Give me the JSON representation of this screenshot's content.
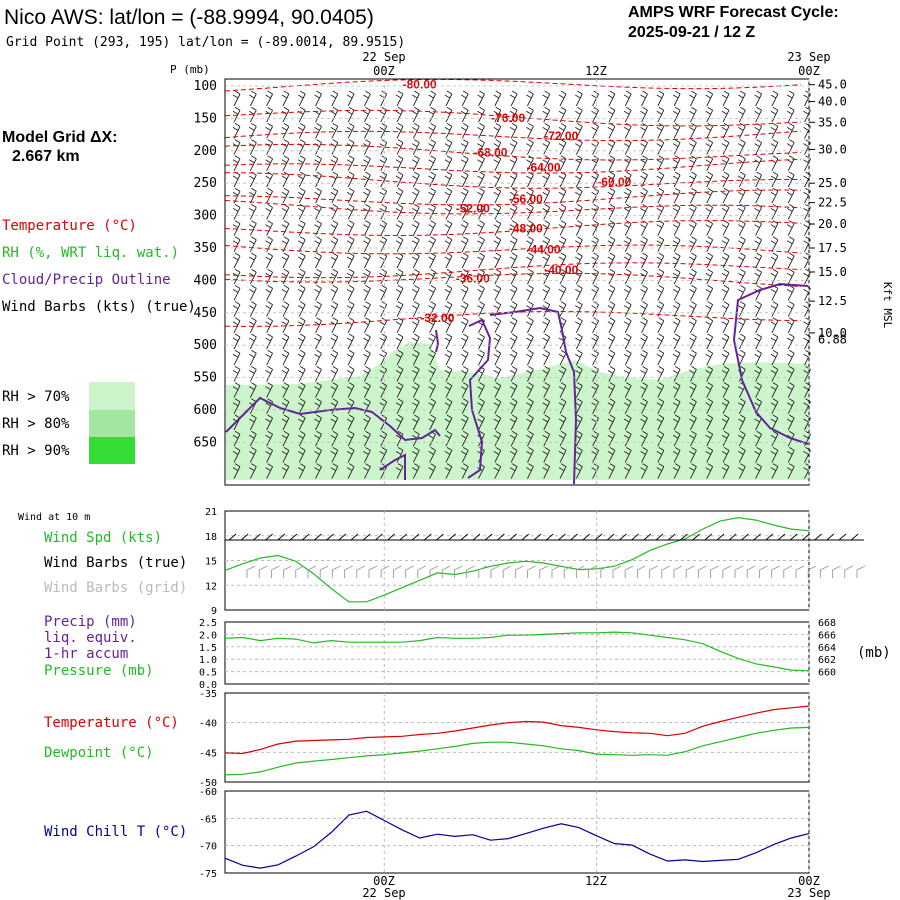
{
  "header": {
    "title": "Nico AWS:  lat/lon = (-88.9994, 90.0405)",
    "grid_point": "Grid Point (293, 195) lat/lon = (-89.0014, 89.9515)",
    "cycle_label": "AMPS WRF Forecast Cycle:",
    "cycle_value": "2025-09-21 / 12  Z"
  },
  "colors": {
    "temperature": "#dd0000",
    "rh": "#22bb22",
    "cloud": "#662299",
    "pressure": "#22bb22",
    "dewpoint": "#22bb22",
    "windchill": "#000099",
    "rh70": "#ccf5cc",
    "rh80": "#a2e6a2",
    "rh90": "#33dd33"
  },
  "time_axis": {
    "top_date": "22 Sep",
    "top_date_end": "23 Sep",
    "ticks": [
      "00Z",
      "12Z",
      "00Z"
    ],
    "bottom_date": "22 Sep",
    "bottom_date_end": "23 Sep"
  },
  "sounding_legend": {
    "model_grid_1": "Model Grid ΔX:",
    "model_grid_2": "2.667 km",
    "temperature": "Temperature (°C)",
    "rh": "RH (%, WRT liq. wat.)",
    "cloud": "Cloud/Precip Outline",
    "wind": "Wind Barbs (kts) (true)",
    "rh70": "RH > 70%",
    "rh80": "RH > 80%",
    "rh90": "RH > 90%",
    "right_axis_label": "Kft MSL"
  },
  "panel_labels": {
    "wind10m_title": "Wind at 10 m",
    "wind_spd": "Wind Spd (kts)",
    "wind_barbs_true": "Wind Barbs (true)",
    "wind_barbs_grid": "Wind Barbs (grid)",
    "precip_1": "Precip (mm)",
    "precip_2": "liq. equiv.",
    "precip_3": "1-hr accum",
    "pressure": "Pressure (mb)",
    "pressure_unit": "(mb)",
    "temperature": "Temperature (°C)",
    "dewpoint": "Dewpoint (°C)",
    "windchill": "Wind Chill T (°C)"
  },
  "chart_data": [
    {
      "type": "heatmap",
      "name": "sounding",
      "ylabel": "P (mb)",
      "yticks": [
        100,
        150,
        200,
        250,
        300,
        350,
        400,
        450,
        500,
        550,
        600,
        650
      ],
      "kft_ticks": [
        "45.0",
        "40.0",
        "35.0",
        "30.0",
        "25.0",
        "22.5",
        "20.0",
        "17.5",
        "15.0",
        "12.5",
        "10.0"
      ],
      "kft_pressures": [
        98,
        124,
        156,
        198,
        250,
        280,
        313,
        350,
        387,
        432,
        481
      ],
      "kft_extra": "6.88",
      "x_hours": [
        0,
        6,
        12,
        18,
        24,
        30,
        36
      ],
      "temperature_labels": [
        {
          "text": "-80.00",
          "hour": 2,
          "p": 98
        },
        {
          "text": "-76.00",
          "hour": 7,
          "p": 149
        },
        {
          "text": "-72.00",
          "hour": 10,
          "p": 177
        },
        {
          "text": "-68.00",
          "hour": 6,
          "p": 203
        },
        {
          "text": "-64.00",
          "hour": 9,
          "p": 226
        },
        {
          "text": "-60.00",
          "hour": 13,
          "p": 248
        },
        {
          "text": "-56.00",
          "hour": 8,
          "p": 274
        },
        {
          "text": "-52.00",
          "hour": 5,
          "p": 289
        },
        {
          "text": "-48.00",
          "hour": 8,
          "p": 320
        },
        {
          "text": "-44.00",
          "hour": 9,
          "p": 352
        },
        {
          "text": "-40.00",
          "hour": 10,
          "p": 384
        },
        {
          "text": "-36.00",
          "hour": 5,
          "p": 397
        },
        {
          "text": "-32.00",
          "hour": 3,
          "p": 458
        }
      ]
    },
    {
      "type": "line",
      "name": "wind10m",
      "ylim": [
        9,
        21
      ],
      "yticks": [
        "21",
        "18",
        "15",
        "12",
        "9"
      ],
      "x_hours": [
        -9,
        -8,
        -7,
        -6,
        -5,
        -4,
        -3,
        -2,
        -1,
        0,
        1,
        2,
        3,
        4,
        5,
        6,
        7,
        8,
        9,
        10,
        11,
        12,
        13,
        14,
        15,
        16,
        17,
        18,
        19,
        20,
        21,
        22,
        23,
        24
      ],
      "series": [
        {
          "name": "Wind Spd (kts)",
          "values": [
            13.8,
            14.6,
            15.3,
            15.6,
            14.9,
            13.4,
            11.6,
            10.0,
            10.0,
            10.8,
            11.7,
            12.6,
            13.5,
            13.3,
            13.7,
            14.3,
            14.7,
            14.9,
            14.7,
            14.3,
            13.9,
            14.0,
            14.3,
            15.1,
            16.2,
            17.0,
            17.6,
            18.8,
            19.8,
            20.2,
            19.9,
            19.3,
            18.8,
            18.6
          ]
        }
      ]
    },
    {
      "type": "line",
      "name": "pressure",
      "left_ticks": [
        "2.5",
        "2.0",
        "1.5",
        "1.0",
        "0.5",
        "0.0"
      ],
      "ylim": [
        660,
        668
      ],
      "yticks": [
        "668",
        "666",
        "664",
        "662",
        "660"
      ],
      "x_hours": [
        -9,
        -8,
        -7,
        -6,
        -5,
        -4,
        -3,
        -2,
        -1,
        0,
        1,
        2,
        3,
        4,
        5,
        6,
        7,
        8,
        9,
        10,
        11,
        12,
        13,
        14,
        15,
        16,
        17,
        18,
        19,
        20,
        21,
        22,
        23,
        24
      ],
      "series": [
        {
          "name": "Pressure (mb)",
          "values": [
            665.9,
            666.0,
            665.6,
            665.9,
            665.8,
            665.3,
            665.6,
            665.4,
            665.4,
            665.4,
            665.4,
            665.6,
            666.0,
            665.9,
            665.9,
            666.0,
            666.3,
            666.3,
            666.4,
            666.5,
            666.6,
            666.6,
            666.7,
            666.6,
            666.3,
            666.0,
            665.7,
            665.2,
            664.2,
            663.3,
            662.6,
            662.2,
            661.8,
            661.7
          ]
        }
      ]
    },
    {
      "type": "line",
      "name": "temperature",
      "ylim": [
        -50,
        -35
      ],
      "yticks": [
        "-35",
        "-40",
        "-45",
        "-50"
      ],
      "x_hours": [
        -9,
        -8,
        -7,
        -6,
        -5,
        -4,
        -3,
        -2,
        -1,
        0,
        1,
        2,
        3,
        4,
        5,
        6,
        7,
        8,
        9,
        10,
        11,
        12,
        13,
        14,
        15,
        16,
        17,
        18,
        19,
        20,
        21,
        22,
        23,
        24
      ],
      "series": [
        {
          "name": "Temperature (°C)",
          "values": [
            -45.1,
            -45.2,
            -44.5,
            -43.6,
            -43.1,
            -43.0,
            -42.9,
            -42.8,
            -42.5,
            -42.4,
            -42.3,
            -42.0,
            -41.8,
            -41.4,
            -40.9,
            -40.4,
            -40.0,
            -39.8,
            -39.9,
            -40.5,
            -40.8,
            -41.2,
            -41.5,
            -41.7,
            -41.8,
            -42.2,
            -41.8,
            -40.6,
            -39.8,
            -39.1,
            -38.4,
            -37.8,
            -37.5,
            -37.2
          ]
        },
        {
          "name": "Dewpoint (°C)",
          "values": [
            -48.8,
            -48.7,
            -48.3,
            -47.5,
            -46.8,
            -46.5,
            -46.2,
            -45.9,
            -45.6,
            -45.4,
            -45.1,
            -44.8,
            -44.4,
            -44.0,
            -43.5,
            -43.3,
            -43.3,
            -43.6,
            -43.9,
            -44.4,
            -44.7,
            -45.3,
            -45.4,
            -45.5,
            -45.4,
            -45.5,
            -44.9,
            -43.9,
            -43.2,
            -42.5,
            -41.8,
            -41.3,
            -40.9,
            -40.8
          ]
        }
      ]
    },
    {
      "type": "line",
      "name": "windchill",
      "ylim": [
        -75,
        -60
      ],
      "yticks": [
        "-60",
        "-65",
        "-70",
        "-75"
      ],
      "x_hours": [
        -9,
        -8,
        -7,
        -6,
        -5,
        -4,
        -3,
        -2,
        -1,
        0,
        1,
        2,
        3,
        4,
        5,
        6,
        7,
        8,
        9,
        10,
        11,
        12,
        13,
        14,
        15,
        16,
        17,
        18,
        19,
        20,
        21,
        22,
        23,
        24
      ],
      "series": [
        {
          "name": "Wind Chill T (°C)",
          "values": [
            -72.3,
            -73.6,
            -74.1,
            -73.5,
            -71.9,
            -70.2,
            -67.6,
            -64.4,
            -63.7,
            -65.4,
            -67.1,
            -68.6,
            -67.9,
            -68.3,
            -68.0,
            -69.0,
            -68.7,
            -67.8,
            -66.8,
            -66.0,
            -66.7,
            -68.2,
            -69.6,
            -69.9,
            -71.5,
            -72.8,
            -72.6,
            -72.9,
            -72.7,
            -72.5,
            -71.3,
            -69.8,
            -68.6,
            -67.8
          ]
        }
      ]
    }
  ]
}
